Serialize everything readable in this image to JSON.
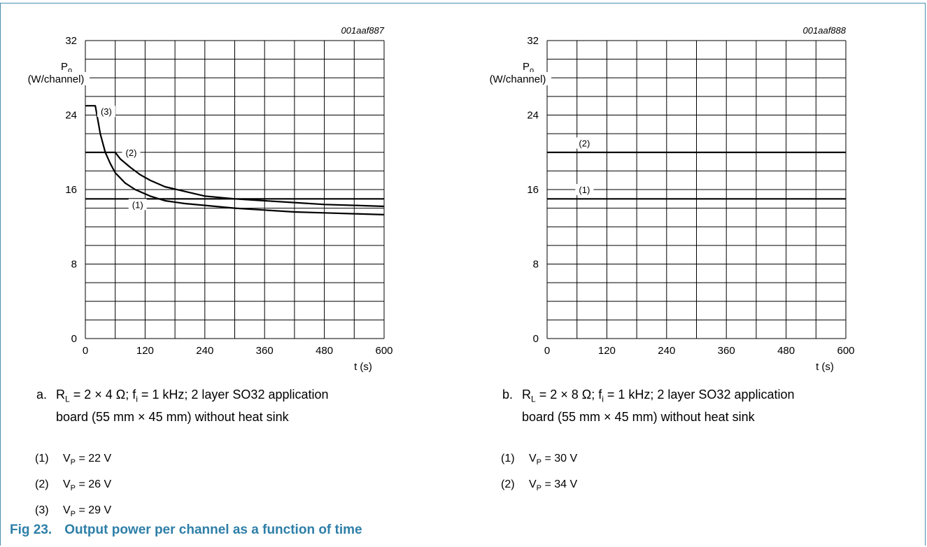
{
  "chart_data": [
    {
      "type": "line",
      "title": "",
      "figure_id": "001aaf887",
      "ylabel_main": "P",
      "ylabel_sub": "o",
      "ylabel_unit": "(W/channel)",
      "xlabel": "t (s)",
      "xlim": [
        0,
        600
      ],
      "ylim": [
        0,
        32
      ],
      "x_ticks": [
        "0",
        "120",
        "240",
        "360",
        "480",
        "600"
      ],
      "y_ticks": [
        "0",
        "8",
        "16",
        "24",
        "32"
      ],
      "grid": true,
      "series": [
        {
          "name": "(1)",
          "x": [
            0,
            600
          ],
          "y": [
            15,
            15
          ]
        },
        {
          "name": "(2)",
          "x": [
            0,
            60,
            70,
            90,
            110,
            130,
            160,
            200,
            240,
            300,
            360,
            420,
            480,
            540,
            600
          ],
          "y": [
            20,
            20,
            19.3,
            18.4,
            17.6,
            17.0,
            16.3,
            15.8,
            15.3,
            15.0,
            14.8,
            14.6,
            14.4,
            14.3,
            14.2
          ]
        },
        {
          "name": "(3)",
          "x": [
            0,
            20,
            25,
            30,
            40,
            50,
            60,
            80,
            100,
            130,
            160,
            200,
            240,
            300,
            360,
            420,
            480,
            540,
            600
          ],
          "y": [
            25,
            25,
            23.5,
            22.0,
            20.0,
            18.8,
            17.8,
            16.7,
            16.0,
            15.3,
            14.8,
            14.5,
            14.3,
            14.0,
            13.8,
            13.6,
            13.5,
            13.4,
            13.3
          ]
        }
      ],
      "annotations": [
        {
          "text": "(1)",
          "x": 105,
          "y": 14.4
        },
        {
          "text": "(2)",
          "x": 92,
          "y": 20
        },
        {
          "text": "(3)",
          "x": 42,
          "y": 24.4
        }
      ]
    },
    {
      "type": "line",
      "title": "",
      "figure_id": "001aaf888",
      "ylabel_main": "P",
      "ylabel_sub": "o",
      "ylabel_unit": "(W/channel)",
      "xlabel": "t (s)",
      "xlim": [
        0,
        600
      ],
      "ylim": [
        0,
        32
      ],
      "x_ticks": [
        "0",
        "120",
        "240",
        "360",
        "480",
        "600"
      ],
      "y_ticks": [
        "0",
        "8",
        "16",
        "24",
        "32"
      ],
      "grid": true,
      "series": [
        {
          "name": "(1)",
          "x": [
            0,
            600
          ],
          "y": [
            15,
            15
          ]
        },
        {
          "name": "(2)",
          "x": [
            0,
            600
          ],
          "y": [
            20,
            20
          ]
        }
      ],
      "annotations": [
        {
          "text": "(1)",
          "x": 75,
          "y": 16
        },
        {
          "text": "(2)",
          "x": 75,
          "y": 21
        }
      ]
    }
  ],
  "captions": {
    "a": {
      "letter": "a.",
      "rl_label": "R",
      "rl_sub": "L",
      "rl_value": " = 2 × 4 Ω; f",
      "fi_sub": "i",
      "line1_rest": " = 1 kHz; 2 layer SO32 application",
      "line2": "board (55 mm × 45 mm) without heat sink"
    },
    "b": {
      "letter": "b.",
      "rl_label": "R",
      "rl_sub": "L",
      "rl_value": " = 2 × 8 Ω; f",
      "fi_sub": "i",
      "line1_rest": " = 1 kHz; 2 layer SO32 application",
      "line2": "board (55 mm × 45 mm) without heat sink"
    }
  },
  "legend_a": [
    {
      "num": "(1)",
      "vp": "V",
      "vp_sub": "P",
      "value": " = 22 V"
    },
    {
      "num": "(2)",
      "vp": "V",
      "vp_sub": "P",
      "value": " = 26 V"
    },
    {
      "num": "(3)",
      "vp": "V",
      "vp_sub": "P",
      "value": " = 29 V"
    }
  ],
  "legend_b": [
    {
      "num": "(1)",
      "vp": "V",
      "vp_sub": "P",
      "value": " = 30 V"
    },
    {
      "num": "(2)",
      "vp": "V",
      "vp_sub": "P",
      "value": " = 34 V"
    }
  ],
  "figure": {
    "number": "Fig 23.",
    "title": "Output power per channel as a function of time"
  }
}
